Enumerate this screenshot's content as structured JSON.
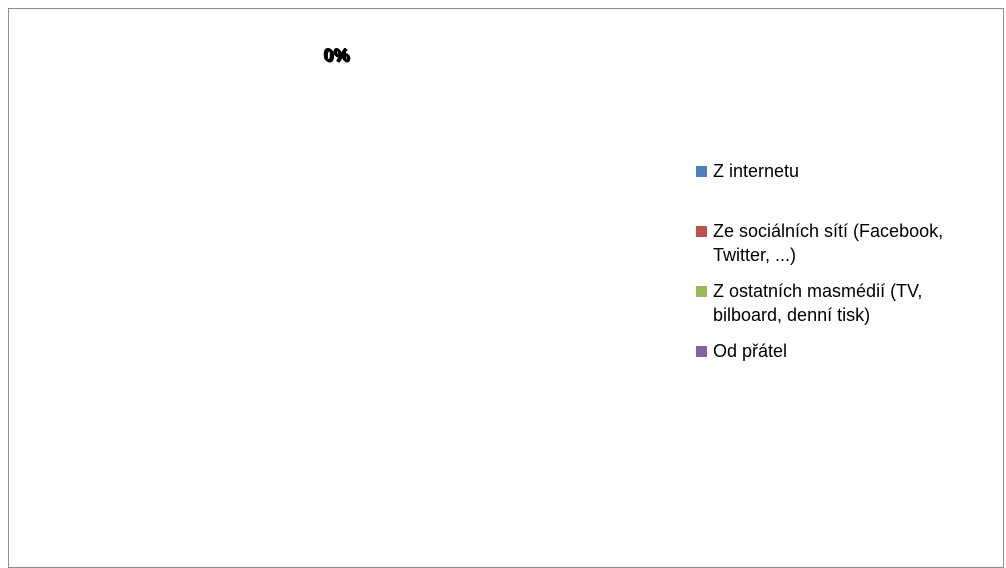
{
  "chart_data": {
    "type": "pie",
    "categories": [
      "Z internetu",
      "Ze sociálních sítí (Facebook, Twitter, ...)",
      "Z ostatních masmédií (TV, bilboard, denní tisk)",
      "Od přátel"
    ],
    "values": [
      0,
      0,
      0,
      0
    ],
    "data_labels": [
      "0%",
      "0%",
      "0%",
      "0%"
    ],
    "colors": [
      "#4F81BD",
      "#C0504D",
      "#9BBB59",
      "#8064A2"
    ],
    "legend_position": "right"
  },
  "legend": {
    "items": [
      {
        "label_line1": "Z internetu",
        "label_line2": "",
        "color": "#4F81BD"
      },
      {
        "label_line1": "Ze sociálních sítí (Facebook,",
        "label_line2": "Twitter, ...)",
        "color": "#C0504D"
      },
      {
        "label_line1": "Z ostatních masmédií (TV,",
        "label_line2": "bilboard, denní tisk)",
        "color": "#9BBB59"
      },
      {
        "label_line1": "Od přátel",
        "label_line2": "",
        "color": "#8064A2"
      }
    ]
  }
}
